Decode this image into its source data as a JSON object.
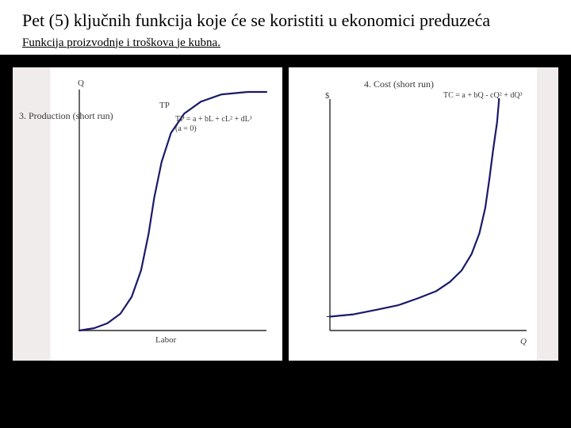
{
  "header": {
    "title": "Pet (5) ključnih funkcija  koje će se koristiti u ekonomici preduzeća",
    "subtitle": "Funkcija proizvodnje i troškova je kubna."
  },
  "left_chart": {
    "heading": "3. Production (short run)",
    "y_top_label": "Q",
    "x_label": "Labor",
    "curve_label": "TP",
    "equation_line1": "TP = a + bL + cL² + dL³",
    "equation_line2": "(a = 0)",
    "curve": {
      "type": "cubic-s-curve",
      "stroke": "#1a1a6a",
      "stroke_width": 2.2,
      "axis_color": "#2a2a2a",
      "axis_width": 1.4,
      "points_normalized": [
        [
          0.0,
          0.0
        ],
        [
          0.08,
          0.01
        ],
        [
          0.15,
          0.03
        ],
        [
          0.22,
          0.07
        ],
        [
          0.28,
          0.14
        ],
        [
          0.33,
          0.25
        ],
        [
          0.37,
          0.4
        ],
        [
          0.4,
          0.55
        ],
        [
          0.44,
          0.7
        ],
        [
          0.49,
          0.82
        ],
        [
          0.56,
          0.9
        ],
        [
          0.65,
          0.95
        ],
        [
          0.76,
          0.98
        ],
        [
          0.9,
          0.99
        ],
        [
          1.0,
          0.99
        ]
      ]
    }
  },
  "right_chart": {
    "heading": "4. Cost (short run)",
    "y_top_label": "$",
    "x_label": "Q",
    "equation": "TC = a + bQ - cQ² + dQ³",
    "curve": {
      "type": "cubic-cost",
      "stroke": "#1a1a6a",
      "stroke_width": 2.2,
      "axis_color": "#2a2a2a",
      "axis_width": 1.4,
      "intercept_normalized": 0.06,
      "points_normalized": [
        [
          0.0,
          0.06
        ],
        [
          0.12,
          0.07
        ],
        [
          0.24,
          0.09
        ],
        [
          0.35,
          0.11
        ],
        [
          0.45,
          0.14
        ],
        [
          0.54,
          0.17
        ],
        [
          0.61,
          0.21
        ],
        [
          0.67,
          0.26
        ],
        [
          0.72,
          0.33
        ],
        [
          0.76,
          0.42
        ],
        [
          0.79,
          0.53
        ],
        [
          0.81,
          0.65
        ],
        [
          0.83,
          0.78
        ],
        [
          0.85,
          0.9
        ],
        [
          0.86,
          1.0
        ]
      ]
    }
  }
}
